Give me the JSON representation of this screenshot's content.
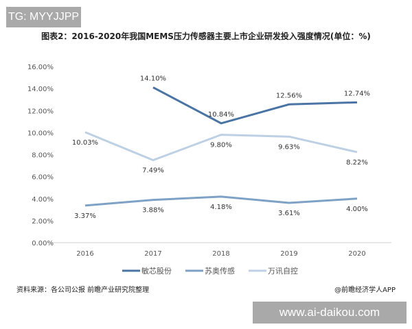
{
  "watermarks": {
    "top": "TG: MYYJJPP",
    "bottom": "www.ai-daikou.com"
  },
  "source": "资料来源：各公司公报 前瞻产业研究院整理",
  "credit": "@前瞻经济学人APP",
  "chart_data": {
    "type": "line",
    "title": "图表2：2016-2020年我国MEMS压力传感器主要上市企业研发投入强度情况(单位：%)",
    "categories": [
      "2016",
      "2017",
      "2018",
      "2019",
      "2020"
    ],
    "ylim": [
      0,
      16
    ],
    "yticks": [
      "0.00%",
      "2.00%",
      "4.00%",
      "6.00%",
      "8.00%",
      "10.00%",
      "12.00%",
      "14.00%",
      "16.00%"
    ],
    "grid": false,
    "legend": "bottom",
    "series": [
      {
        "name": "敏芯股份",
        "color": "#4a74a3",
        "values": [
          null,
          14.1,
          10.84,
          12.56,
          12.74
        ],
        "labels": [
          "",
          "14.10%",
          "10.84%",
          "12.56%",
          "12.74%"
        ],
        "label_pos": "above"
      },
      {
        "name": "苏奥传感",
        "color": "#7ea2c6",
        "values": [
          3.37,
          3.88,
          4.18,
          3.61,
          4.0
        ],
        "labels": [
          "3.37%",
          "3.88%",
          "4.18%",
          "3.61%",
          "4.00%"
        ],
        "label_pos": "below"
      },
      {
        "name": "万讯自控",
        "color": "#bdd0e4",
        "values": [
          10.03,
          7.49,
          9.8,
          9.63,
          8.22
        ],
        "labels": [
          "10.03%",
          "7.49%",
          "9.80%",
          "9.63%",
          "8.22%"
        ],
        "label_pos": "below"
      }
    ]
  }
}
